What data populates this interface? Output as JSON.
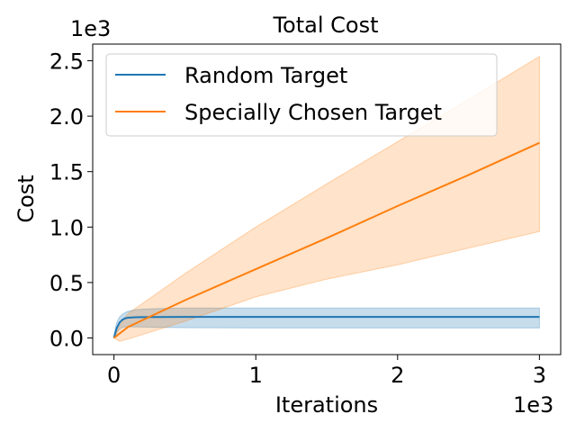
{
  "chart_data": {
    "type": "line",
    "title": "Total Cost",
    "xlabel": "Iterations",
    "ylabel": "Cost",
    "x_multiplier_label": "1e3",
    "y_multiplier_label": "1e3",
    "xlim": [
      -0.15,
      3.15
    ],
    "ylim": [
      -0.15,
      2.65
    ],
    "xticks": [
      0,
      1,
      2,
      3
    ],
    "xtick_labels": [
      "0",
      "1",
      "2",
      "3"
    ],
    "yticks": [
      0.0,
      0.5,
      1.0,
      1.5,
      2.0,
      2.5
    ],
    "ytick_labels": [
      "0.0",
      "0.5",
      "1.0",
      "1.5",
      "2.0",
      "2.5"
    ],
    "grid": false,
    "legend_position": "top-left",
    "series": [
      {
        "name": "Random Target",
        "color": "#1f77b4",
        "x": [
          0,
          0.01,
          0.02,
          0.04,
          0.06,
          0.08,
          0.1,
          0.15,
          0.2,
          0.3,
          0.5,
          1.0,
          2.0,
          3.0
        ],
        "mean": [
          0,
          0.05,
          0.09,
          0.14,
          0.165,
          0.178,
          0.183,
          0.187,
          0.188,
          0.189,
          0.19,
          0.19,
          0.19,
          0.19
        ],
        "lower": [
          0,
          0.02,
          0.05,
          0.08,
          0.095,
          0.1,
          0.1,
          0.1,
          0.098,
          0.096,
          0.093,
          0.09,
          0.09,
          0.09
        ],
        "upper": [
          0,
          0.09,
          0.14,
          0.19,
          0.215,
          0.23,
          0.24,
          0.255,
          0.26,
          0.265,
          0.27,
          0.27,
          0.27,
          0.27
        ]
      },
      {
        "name": "Specially Chosen Target",
        "color": "#ff7f0e",
        "x": [
          0,
          0.04,
          0.1,
          0.5,
          1.0,
          1.5,
          2.0,
          2.5,
          3.0
        ],
        "mean": [
          0,
          0.04,
          0.1,
          0.34,
          0.62,
          0.9,
          1.19,
          1.47,
          1.76
        ],
        "lower": [
          0,
          -0.03,
          -0.01,
          0.15,
          0.37,
          0.53,
          0.66,
          0.81,
          0.96
        ],
        "upper": [
          0,
          0.11,
          0.22,
          0.58,
          1.0,
          1.39,
          1.77,
          2.15,
          2.54
        ]
      }
    ]
  }
}
